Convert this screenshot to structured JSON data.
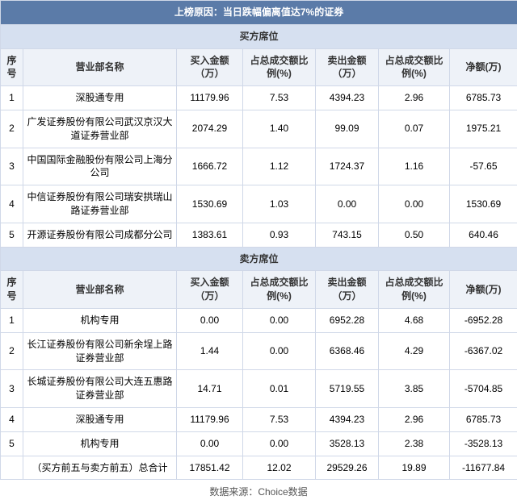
{
  "title": "上榜原因：当日跌幅偏离值达7%的证券",
  "section_buy": "买方席位",
  "section_sell": "卖方席位",
  "columns": {
    "idx": "序号",
    "name": "营业部名称",
    "buy_amt": "买入金额（万）",
    "buy_pct": "占总成交额比例(%)",
    "sell_amt": "卖出金额（万）",
    "sell_pct": "占总成交额比例(%)",
    "net": "净额(万)"
  },
  "buy_rows": [
    {
      "idx": "1",
      "name": "深股通专用",
      "buy_amt": "11179.96",
      "buy_pct": "7.53",
      "sell_amt": "4394.23",
      "sell_pct": "2.96",
      "net": "6785.73"
    },
    {
      "idx": "2",
      "name": "广发证券股份有限公司武汉京汉大道证券营业部",
      "buy_amt": "2074.29",
      "buy_pct": "1.40",
      "sell_amt": "99.09",
      "sell_pct": "0.07",
      "net": "1975.21"
    },
    {
      "idx": "3",
      "name": "中国国际金融股份有限公司上海分公司",
      "buy_amt": "1666.72",
      "buy_pct": "1.12",
      "sell_amt": "1724.37",
      "sell_pct": "1.16",
      "net": "-57.65"
    },
    {
      "idx": "4",
      "name": "中信证券股份有限公司瑞安拱瑞山路证券营业部",
      "buy_amt": "1530.69",
      "buy_pct": "1.03",
      "sell_amt": "0.00",
      "sell_pct": "0.00",
      "net": "1530.69"
    },
    {
      "idx": "5",
      "name": "开源证券股份有限公司成都分公司",
      "buy_amt": "1383.61",
      "buy_pct": "0.93",
      "sell_amt": "743.15",
      "sell_pct": "0.50",
      "net": "640.46"
    }
  ],
  "sell_rows": [
    {
      "idx": "1",
      "name": "机构专用",
      "buy_amt": "0.00",
      "buy_pct": "0.00",
      "sell_amt": "6952.28",
      "sell_pct": "4.68",
      "net": "-6952.28"
    },
    {
      "idx": "2",
      "name": "长江证券股份有限公司新余埕上路证券营业部",
      "buy_amt": "1.44",
      "buy_pct": "0.00",
      "sell_amt": "6368.46",
      "sell_pct": "4.29",
      "net": "-6367.02"
    },
    {
      "idx": "3",
      "name": "长城证券股份有限公司大连五惠路证券营业部",
      "buy_amt": "14.71",
      "buy_pct": "0.01",
      "sell_amt": "5719.55",
      "sell_pct": "3.85",
      "net": "-5704.85"
    },
    {
      "idx": "4",
      "name": "深股通专用",
      "buy_amt": "11179.96",
      "buy_pct": "7.53",
      "sell_amt": "4394.23",
      "sell_pct": "2.96",
      "net": "6785.73"
    },
    {
      "idx": "5",
      "name": "机构专用",
      "buy_amt": "0.00",
      "buy_pct": "0.00",
      "sell_amt": "3528.13",
      "sell_pct": "2.38",
      "net": "-3528.13"
    }
  ],
  "total_row": {
    "name": "（买方前五与卖方前五）总合计",
    "buy_amt": "17851.42",
    "buy_pct": "12.02",
    "sell_amt": "29529.26",
    "sell_pct": "19.89",
    "net": "-11677.84"
  },
  "source": "数据来源：Choice数据",
  "colors": {
    "title_bg": "#5b7ba8",
    "section_bg": "#d6e0f0",
    "cols_bg": "#eef2f8",
    "border": "#d0d8e8"
  }
}
